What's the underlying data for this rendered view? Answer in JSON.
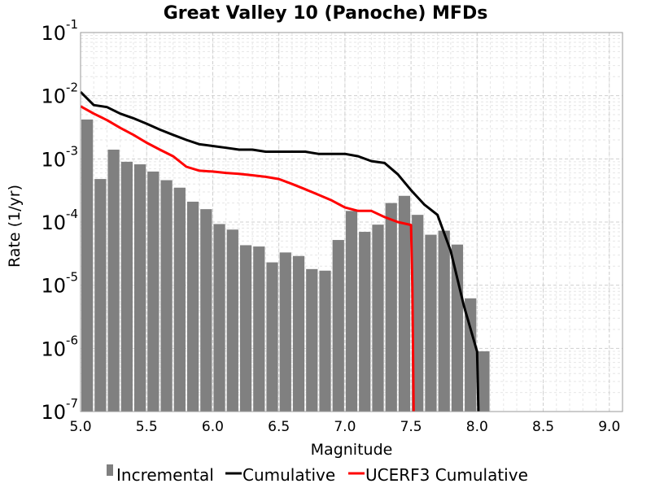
{
  "chart_data": {
    "type": "bar",
    "title": "Great Valley 10 (Panoche) MFDs",
    "xlabel": "Magnitude",
    "ylabel": "Rate (1/yr)",
    "xlim": [
      5.0,
      9.1
    ],
    "ylim": [
      1e-07,
      0.1
    ],
    "yscale": "log",
    "grid": true,
    "legend_position": "bottom",
    "x_ticks": [
      "5.0",
      "5.5",
      "6.0",
      "6.5",
      "7.0",
      "7.5",
      "8.0",
      "8.5",
      "9.0"
    ],
    "y_ticks": [
      {
        "base": "10",
        "exp": "-1"
      },
      {
        "base": "10",
        "exp": "-2"
      },
      {
        "base": "10",
        "exp": "-3"
      },
      {
        "base": "10",
        "exp": "-4"
      },
      {
        "base": "10",
        "exp": "-5"
      },
      {
        "base": "10",
        "exp": "-6"
      },
      {
        "base": "10",
        "exp": "-7"
      }
    ],
    "series": [
      {
        "name": "Incremental",
        "kind": "bar",
        "color": "#808080",
        "x": [
          5.05,
          5.15,
          5.25,
          5.35,
          5.45,
          5.55,
          5.65,
          5.75,
          5.85,
          5.95,
          6.05,
          6.15,
          6.25,
          6.35,
          6.45,
          6.55,
          6.65,
          6.75,
          6.85,
          6.95,
          7.05,
          7.15,
          7.25,
          7.35,
          7.45,
          7.55,
          7.65,
          7.75,
          7.85,
          7.95,
          8.05
        ],
        "y": [
          0.0042,
          0.00048,
          0.0014,
          0.0009,
          0.00082,
          0.00063,
          0.00046,
          0.00035,
          0.00021,
          0.00016,
          9.3e-05,
          7.6e-05,
          4.3e-05,
          4.1e-05,
          2.3e-05,
          3.3e-05,
          2.9e-05,
          1.8e-05,
          1.7e-05,
          5.2e-05,
          0.00015,
          7e-05,
          9.1e-05,
          0.0002,
          0.00026,
          0.00013,
          6.3e-05,
          7.3e-05,
          4.4e-05,
          6.2e-06,
          9e-07
        ]
      },
      {
        "name": "Cumulative",
        "kind": "line",
        "color": "#000000",
        "x": [
          5.0,
          5.1,
          5.2,
          5.3,
          5.4,
          5.5,
          5.6,
          5.7,
          5.8,
          5.9,
          6.0,
          6.1,
          6.2,
          6.3,
          6.4,
          6.5,
          6.6,
          6.7,
          6.8,
          6.9,
          7.0,
          7.1,
          7.2,
          7.3,
          7.4,
          7.5,
          7.6,
          7.7,
          7.8,
          7.9,
          8.0,
          8.01
        ],
        "y": [
          0.0115,
          0.0071,
          0.0066,
          0.0052,
          0.0044,
          0.0036,
          0.0029,
          0.0024,
          0.002,
          0.0017,
          0.0016,
          0.0015,
          0.0014,
          0.0014,
          0.0013,
          0.0013,
          0.0013,
          0.0013,
          0.0012,
          0.0012,
          0.0012,
          0.0011,
          0.00092,
          0.00086,
          0.00057,
          0.00032,
          0.00019,
          0.00013,
          3.5e-05,
          4.7e-06,
          8.9e-07,
          1e-07
        ]
      },
      {
        "name": "UCERF3 Cumulative",
        "kind": "line",
        "color": "#ff0000",
        "x": [
          5.0,
          5.1,
          5.2,
          5.3,
          5.4,
          5.5,
          5.6,
          5.7,
          5.8,
          5.9,
          6.0,
          6.1,
          6.2,
          6.3,
          6.4,
          6.5,
          6.6,
          6.7,
          6.8,
          6.9,
          7.0,
          7.1,
          7.2,
          7.3,
          7.4,
          7.5,
          7.51,
          7.52
        ],
        "y": [
          0.0068,
          0.0052,
          0.0041,
          0.0031,
          0.0024,
          0.0018,
          0.0014,
          0.0011,
          0.00075,
          0.00065,
          0.00063,
          0.0006,
          0.00058,
          0.00055,
          0.00052,
          0.00048,
          0.0004,
          0.00033,
          0.00027,
          0.00022,
          0.00017,
          0.00015,
          0.00015,
          0.00012,
          0.0001,
          9e-05,
          1e-05,
          1e-07
        ]
      }
    ]
  }
}
